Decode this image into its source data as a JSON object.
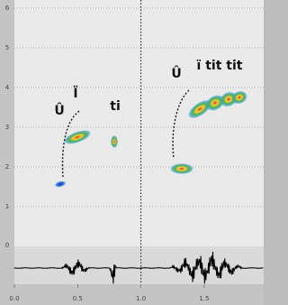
{
  "chart_data": {
    "type": "spectrogram",
    "xlim": [
      0,
      1.97
    ],
    "xticks": [
      {
        "value": 0,
        "label": "0.0"
      },
      0.5,
      {
        "value": 1,
        "label": "1.0"
      },
      1.5
    ],
    "ylim": [
      0,
      6
    ],
    "yticks": [
      1,
      2,
      3,
      4,
      5,
      6
    ],
    "grid": true,
    "marker_x": {
      "value": 1,
      "label": "1.0"
    },
    "waveform_label": "0",
    "annotations": [
      "Û",
      "Ï",
      "ti",
      "Û",
      "ï tit tit"
    ]
  }
}
